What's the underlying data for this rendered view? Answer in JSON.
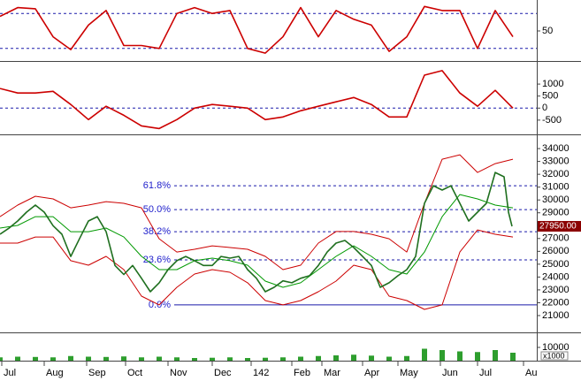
{
  "chart_data": [
    {
      "type": "line",
      "ylim": [
        0,
        100
      ],
      "yticks": [
        50
      ],
      "levels": [
        20,
        80
      ],
      "series": [
        {
          "color": "#cc0000",
          "x": [
            0,
            10,
            20,
            30,
            40,
            50,
            60,
            70,
            80,
            90,
            100,
            110,
            120,
            130,
            140,
            150,
            160,
            170,
            180,
            190,
            200,
            210,
            220,
            230,
            240,
            250,
            260,
            270,
            280,
            290
          ],
          "values": [
            75,
            90,
            88,
            40,
            18,
            60,
            85,
            25,
            25,
            20,
            80,
            90,
            80,
            85,
            20,
            12,
            40,
            90,
            40,
            85,
            70,
            60,
            15,
            40,
            92,
            85,
            85,
            20,
            85,
            40
          ]
        }
      ]
    },
    {
      "type": "line",
      "ylim": [
        -1020,
        1850
      ],
      "yticks": [
        -500,
        0,
        500,
        1000
      ],
      "levels": [
        0
      ],
      "series": [
        {
          "color": "#cc0000",
          "x": [
            0,
            10,
            20,
            30,
            40,
            50,
            60,
            70,
            80,
            90,
            100,
            110,
            120,
            130,
            140,
            150,
            160,
            170,
            180,
            190,
            200,
            210,
            220,
            230,
            240,
            250,
            260,
            270,
            280,
            290
          ],
          "values": [
            815,
            630,
            630,
            700,
            150,
            -480,
            75,
            -300,
            -740,
            -850,
            -480,
            0,
            150,
            75,
            0,
            -480,
            -370,
            -110,
            75,
            260,
            440,
            150,
            -370,
            -370,
            1370,
            1560,
            630,
            75,
            740,
            0
          ]
        }
      ]
    },
    {
      "type": "line",
      "ylim": [
        19760,
        34900
      ],
      "yticks": [
        21000,
        22000,
        23000,
        24000,
        25000,
        26000,
        27000,
        28000,
        29000,
        30000,
        31000,
        32000,
        33000,
        34000
      ],
      "levels": [
        {
          "value": 31110,
          "label": "61.8%"
        },
        {
          "value": 29250,
          "label": "50.0%"
        },
        {
          "value": 27530,
          "label": "38.2%"
        },
        {
          "value": 25330,
          "label": "23.6%"
        },
        {
          "value": 21830,
          "label": "0.0%"
        }
      ],
      "last_price": {
        "value": 27950,
        "label": "27950.00"
      },
      "series": [
        {
          "color": "#cc0000",
          "x": [
            0,
            10,
            20,
            30,
            40,
            50,
            60,
            70,
            80,
            90,
            100,
            110,
            120,
            130,
            140,
            150,
            160,
            170,
            180,
            190,
            200,
            210,
            220,
            230,
            240,
            250,
            260,
            270,
            280,
            290
          ],
          "values": [
            28700,
            29600,
            30290,
            30080,
            29390,
            29600,
            29870,
            29740,
            29390,
            26980,
            25950,
            26160,
            26430,
            26300,
            26160,
            25610,
            24580,
            24920,
            26640,
            27540,
            27540,
            27330,
            26980,
            25950,
            29740,
            33170,
            33520,
            32140,
            32830,
            33170
          ]
        },
        {
          "color": "#cc0000",
          "x": [
            0,
            10,
            20,
            30,
            40,
            50,
            60,
            70,
            80,
            90,
            100,
            110,
            120,
            130,
            140,
            150,
            160,
            170,
            180,
            190,
            200,
            210,
            220,
            230,
            240,
            250,
            260,
            270,
            280,
            290
          ],
          "values": [
            26640,
            26640,
            27120,
            27120,
            25270,
            24920,
            25610,
            24580,
            22510,
            21830,
            23200,
            24230,
            24580,
            24370,
            23550,
            22170,
            21830,
            22170,
            22860,
            23680,
            24920,
            24580,
            22510,
            22170,
            21480,
            21830,
            25950,
            27670,
            27330,
            27120
          ]
        },
        {
          "color": "#009900",
          "x": [
            0,
            10,
            20,
            30,
            40,
            50,
            60,
            70,
            80,
            90,
            100,
            110,
            120,
            130,
            140,
            150,
            160,
            170,
            180,
            190,
            200,
            210,
            220,
            230,
            240,
            250,
            260,
            270,
            280,
            290
          ],
          "values": [
            27810,
            28020,
            28700,
            28700,
            27530,
            27530,
            27810,
            27120,
            25610,
            24580,
            24580,
            25270,
            25470,
            25270,
            24920,
            23680,
            23200,
            23550,
            24580,
            25610,
            26430,
            25610,
            24580,
            24230,
            25950,
            28700,
            30420,
            30080,
            29600,
            29390
          ]
        },
        {
          "color": "#1f6f1f",
          "x": [
            0,
            5,
            10,
            15,
            20,
            25,
            30,
            35,
            40,
            45,
            50,
            55,
            60,
            65,
            70,
            75,
            80,
            85,
            90,
            95,
            100,
            105,
            110,
            115,
            120,
            125,
            130,
            135,
            140,
            145,
            150,
            155,
            160,
            165,
            170,
            175,
            180,
            185,
            190,
            195,
            200,
            205,
            210,
            215,
            220,
            225,
            230,
            235,
            240,
            245,
            250,
            255,
            260,
            265,
            270,
            275,
            280,
            285,
            287.5,
            289.5
          ],
          "values": [
            27330,
            27800,
            28360,
            29050,
            29600,
            29050,
            28000,
            27330,
            25600,
            27000,
            28360,
            28700,
            27530,
            24900,
            24200,
            24900,
            23900,
            22860,
            23550,
            24580,
            25270,
            25600,
            25270,
            24900,
            24900,
            25600,
            25470,
            25600,
            24580,
            23900,
            22860,
            23200,
            23700,
            23550,
            23900,
            24100,
            24900,
            25950,
            26640,
            26850,
            26300,
            25600,
            24900,
            23200,
            23550,
            24100,
            24580,
            25600,
            29740,
            31110,
            30770,
            31110,
            29740,
            28360,
            29050,
            29740,
            32140,
            31800,
            29050,
            27950
          ]
        }
      ]
    },
    {
      "type": "bar",
      "ylim": [
        0,
        20000
      ],
      "yticks": [
        10000
      ],
      "y_unit": "x1000",
      "color": "#2e9e2e",
      "x": [
        0,
        10,
        20,
        30,
        40,
        50,
        60,
        70,
        80,
        90,
        100,
        110,
        120,
        130,
        140,
        150,
        160,
        170,
        180,
        190,
        200,
        210,
        220,
        230,
        240,
        250,
        260,
        270,
        280,
        290
      ],
      "values": [
        2500,
        3000,
        2800,
        2500,
        3500,
        3000,
        2800,
        3200,
        2500,
        3000,
        2500,
        2000,
        2200,
        2500,
        2000,
        2200,
        2500,
        3000,
        3500,
        4000,
        4500,
        3800,
        3000,
        3500,
        9000,
        8000,
        7000,
        6500,
        8000,
        6000
      ],
      "xlim": [
        0,
        303.5
      ],
      "xticks": [
        {
          "value": 1,
          "label": "Jul"
        },
        {
          "value": 25,
          "label": "Aug"
        },
        {
          "value": 49,
          "label": "Sep"
        },
        {
          "value": 71,
          "label": "Oct"
        },
        {
          "value": 95,
          "label": "Nov"
        },
        {
          "value": 120,
          "label": "Dec"
        },
        142,
        {
          "value": 165,
          "label": "Feb"
        },
        {
          "value": 182,
          "label": "Mar"
        },
        {
          "value": 205,
          "label": "Apr"
        },
        {
          "value": 225,
          "label": "May"
        },
        {
          "value": 249,
          "label": "Jun"
        },
        {
          "value": 270,
          "label": "Jul"
        },
        {
          "value": 296,
          "label": "Au"
        }
      ]
    }
  ]
}
